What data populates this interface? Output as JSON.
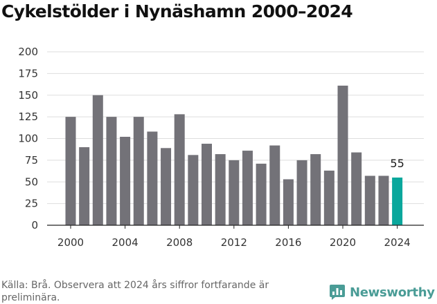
{
  "title": "Cykelstölder i Nynäshamn 2000–2024",
  "source": "Källa: Brå. Observera att 2024 års siffror fortfarande är preliminära.",
  "logo_text": "Newsworthy",
  "colors": {
    "bar": "#737278",
    "highlight": "#0aa79c",
    "grid": "#dddddd",
    "axis": "#222222"
  },
  "chart_data": {
    "type": "bar",
    "x": [
      2000,
      2001,
      2002,
      2003,
      2004,
      2005,
      2006,
      2007,
      2008,
      2009,
      2010,
      2011,
      2012,
      2013,
      2014,
      2015,
      2016,
      2017,
      2018,
      2019,
      2020,
      2021,
      2022,
      2023,
      2024
    ],
    "values": [
      125,
      90,
      150,
      125,
      102,
      125,
      108,
      89,
      128,
      81,
      94,
      82,
      75,
      86,
      71,
      92,
      53,
      75,
      82,
      63,
      161,
      84,
      57,
      57,
      55
    ],
    "highlight_index": 24,
    "data_labels": [
      {
        "index": 24,
        "text": "55"
      }
    ],
    "ylim": [
      0,
      200
    ],
    "yticks": [
      0,
      25,
      50,
      75,
      100,
      125,
      150,
      175,
      200
    ],
    "xticks": [
      2000,
      2004,
      2008,
      2012,
      2016,
      2020,
      2024
    ],
    "grid": true,
    "legend": "none"
  }
}
